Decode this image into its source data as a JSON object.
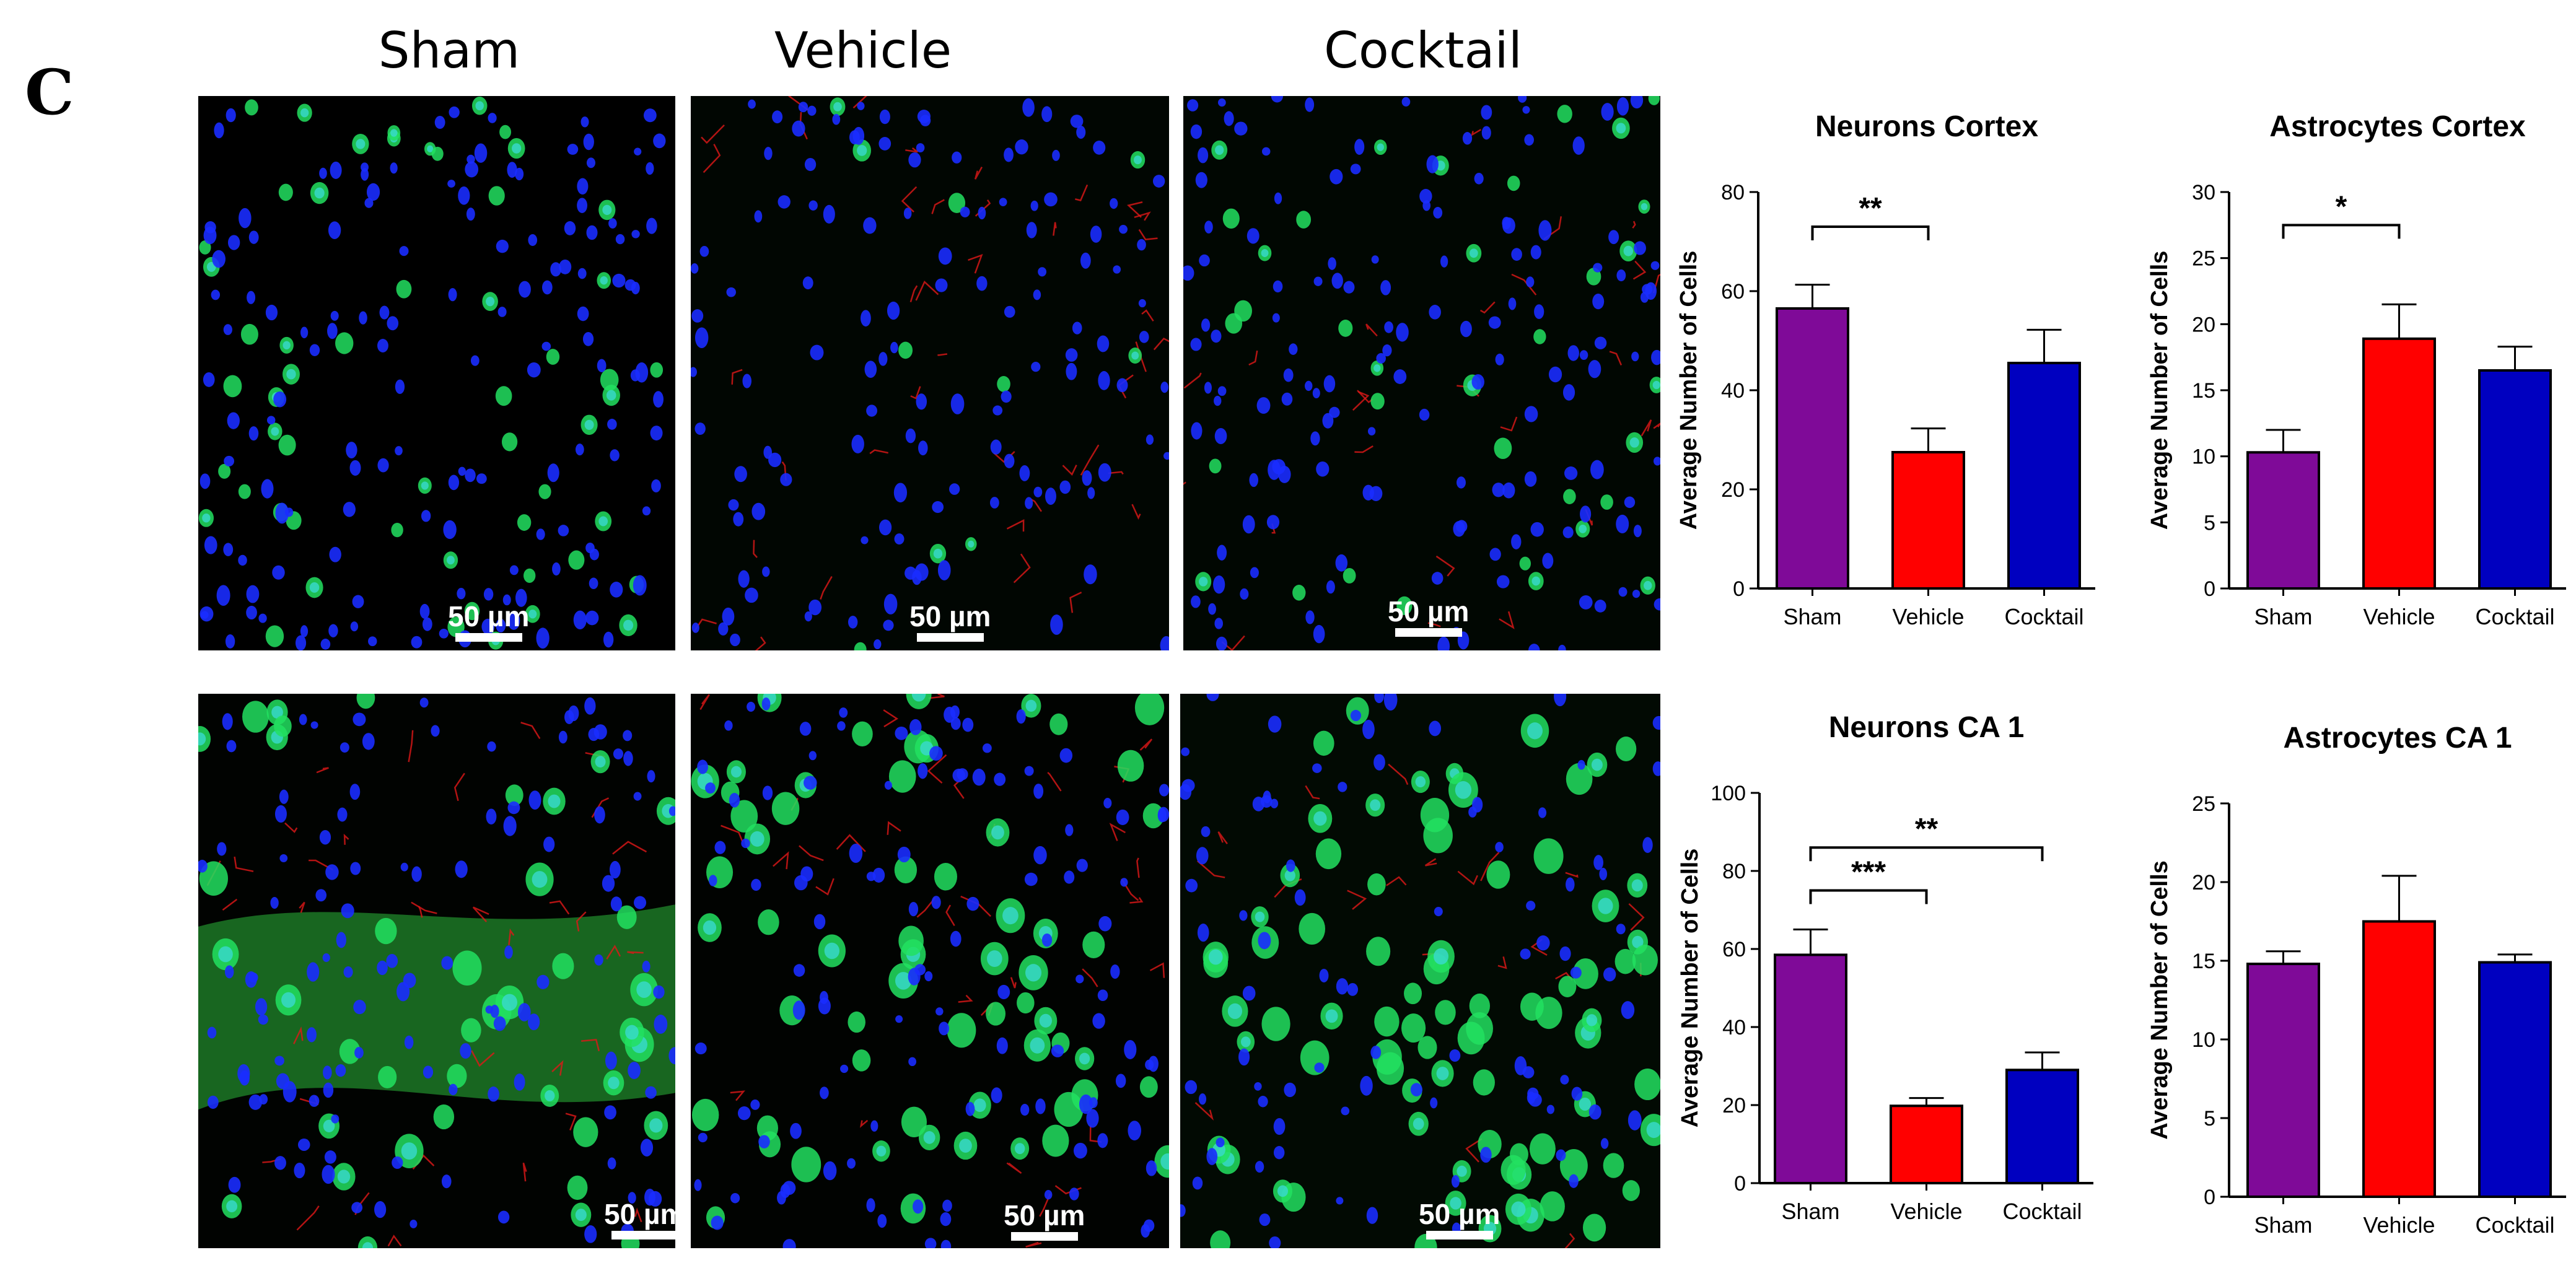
{
  "figure": {
    "panel_letter": "C",
    "column_titles": [
      "Sham",
      "Vehicle",
      "Cocktail"
    ],
    "scale_bar_label": "50 µm"
  },
  "colors": {
    "sham": "#7f0a98",
    "vehicle": "#ff0000",
    "cocktail": "#0000c0",
    "green_stain": "#22e060",
    "blue_stain": "#1a2cff",
    "red_stain": "#e01818"
  },
  "micrographs": [
    {
      "row": "cortex",
      "group": "Sham"
    },
    {
      "row": "cortex",
      "group": "Vehicle"
    },
    {
      "row": "cortex",
      "group": "Cocktail"
    },
    {
      "row": "ca1",
      "group": "Sham"
    },
    {
      "row": "ca1",
      "group": "Vehicle"
    },
    {
      "row": "ca1",
      "group": "Cocktail"
    }
  ],
  "chart_data": [
    {
      "type": "bar",
      "title": "Neurons Cortex",
      "ylabel": "Average Number of Cells",
      "xlabel": "",
      "categories": [
        "Sham",
        "Vehicle",
        "Cocktail"
      ],
      "values": [
        56.5,
        27.5,
        45.5
      ],
      "errors": [
        4.8,
        4.8,
        6.7
      ],
      "ylim": [
        0,
        80
      ],
      "yticks": [
        0,
        20,
        40,
        60,
        80
      ],
      "significance": [
        {
          "from": 0,
          "to": 1,
          "label": "**"
        }
      ]
    },
    {
      "type": "bar",
      "title": "Astrocytes Cortex",
      "ylabel": "Average Number of Cells",
      "xlabel": "",
      "categories": [
        "Sham",
        "Vehicle",
        "Cocktail"
      ],
      "values": [
        10.3,
        18.9,
        16.5
      ],
      "errors": [
        1.7,
        2.6,
        1.8
      ],
      "ylim": [
        0,
        30
      ],
      "yticks": [
        0,
        5,
        10,
        15,
        20,
        25,
        30
      ],
      "significance": [
        {
          "from": 0,
          "to": 1,
          "label": "*"
        }
      ]
    },
    {
      "type": "bar",
      "title": "Neurons CA 1",
      "ylabel": "Average Number of Cells",
      "xlabel": "",
      "categories": [
        "Sham",
        "Vehicle",
        "Cocktail"
      ],
      "values": [
        58.5,
        19.8,
        29.0
      ],
      "errors": [
        6.5,
        2.0,
        4.5
      ],
      "ylim": [
        0,
        100
      ],
      "yticks": [
        0,
        20,
        40,
        60,
        80,
        100
      ],
      "significance": [
        {
          "from": 0,
          "to": 1,
          "label": "***"
        },
        {
          "from": 0,
          "to": 2,
          "label": "**"
        }
      ]
    },
    {
      "type": "bar",
      "title": "Astrocytes CA 1",
      "ylabel": "Average Number of Cells",
      "xlabel": "",
      "categories": [
        "Sham",
        "Vehicle",
        "Cocktail"
      ],
      "values": [
        14.8,
        17.5,
        14.9
      ],
      "errors": [
        0.8,
        2.9,
        0.5
      ],
      "ylim": [
        0,
        25
      ],
      "yticks": [
        0,
        5,
        10,
        15,
        20,
        25
      ],
      "significance": []
    }
  ]
}
